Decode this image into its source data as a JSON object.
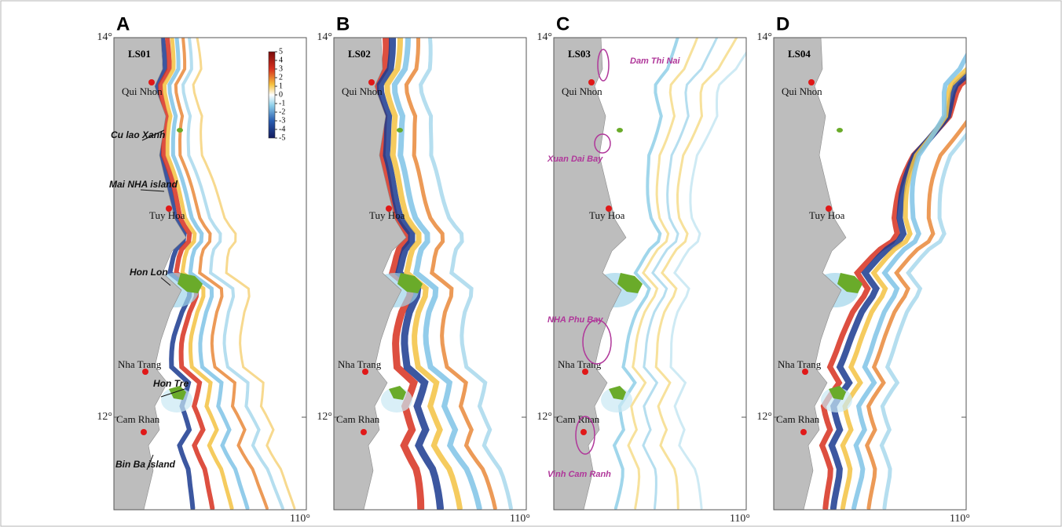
{
  "panels": [
    {
      "letter": "A",
      "scenario": "LS01",
      "lat_ticks": [
        "14°",
        "12°"
      ],
      "lon_ticks": [
        "110°"
      ],
      "cities": [
        "Qui Nhon",
        "Tuy Hoa",
        "Nha Trang",
        "Cam Rhan"
      ],
      "islands": [
        "Cu lao Xanh",
        "Mai NHA island",
        "Hon Lon",
        "Hon Tre",
        "Bin Ba island"
      ],
      "colorbar": {
        "ticks": [
          5,
          4,
          3,
          2,
          1,
          0,
          -1,
          -2,
          -3,
          -4,
          -5
        ]
      }
    },
    {
      "letter": "B",
      "scenario": "LS02",
      "lat_ticks": [
        "14°",
        "12°"
      ],
      "lon_ticks": [
        "110°"
      ],
      "cities": [
        "Qui Nhon",
        "Tuy Hoa",
        "Nha Trang",
        "Cam Rhan"
      ]
    },
    {
      "letter": "C",
      "scenario": "LS03",
      "lat_ticks": [
        "14°",
        "12°"
      ],
      "lon_ticks": [
        "110°"
      ],
      "cities": [
        "Qui Nhon",
        "Tuy Hoa",
        "Nha Trang",
        "Cam Rhan"
      ],
      "bays": [
        "Dam Thi Nai",
        "Xuan Dai Bay",
        "NHA Phu Bay",
        "Vinh Cam Ranh"
      ]
    },
    {
      "letter": "D",
      "scenario": "LS04",
      "lat_ticks": [
        "14°",
        "12°"
      ],
      "lon_ticks": [
        "110°"
      ],
      "cities": [
        "Qui Nhon",
        "Tuy Hoa",
        "Nha Trang",
        "Cam Rhan"
      ]
    }
  ]
}
